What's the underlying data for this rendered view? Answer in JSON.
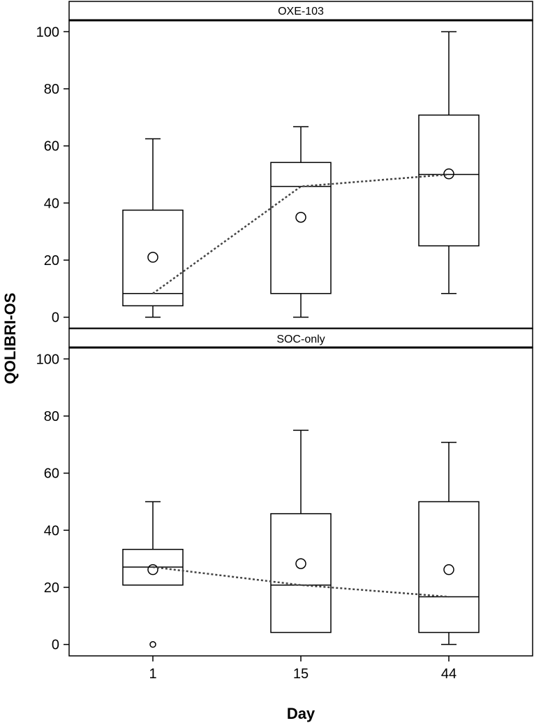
{
  "chart_data": {
    "type": "box",
    "xlabel": "Day",
    "ylabel": "QOLIBRI-OS",
    "categories": [
      "1",
      "15",
      "44"
    ],
    "ylim": [
      -4,
      104
    ],
    "yticks": [
      0,
      20,
      40,
      60,
      80,
      100
    ],
    "grid": false,
    "legend": "none",
    "panels": [
      {
        "label": "OXE-103",
        "boxes": [
          {
            "day": "1",
            "min": 0,
            "q1": 4,
            "median": 8.3,
            "q3": 37.5,
            "max": 62.5,
            "mean": 21,
            "outliers": []
          },
          {
            "day": "15",
            "min": 0,
            "q1": 8.3,
            "median": 45.8,
            "q3": 54.2,
            "max": 66.7,
            "mean": 35,
            "outliers": []
          },
          {
            "day": "44",
            "min": 8.3,
            "q1": 25,
            "median": 50,
            "q3": 70.8,
            "max": 100,
            "mean": 50.2,
            "outliers": []
          }
        ],
        "median_line": [
          8.3,
          45.8,
          50
        ]
      },
      {
        "label": "SOC-only",
        "boxes": [
          {
            "day": "1",
            "min": 20.8,
            "q1": 20.8,
            "median": 27.1,
            "q3": 33.3,
            "max": 50,
            "mean": 26.2,
            "outliers": [
              0
            ]
          },
          {
            "day": "15",
            "min": 4.2,
            "q1": 4.2,
            "median": 20.8,
            "q3": 45.8,
            "max": 75,
            "mean": 28.3,
            "outliers": []
          },
          {
            "day": "44",
            "min": 0,
            "q1": 4.2,
            "median": 16.7,
            "q3": 50,
            "max": 70.8,
            "mean": 26.2,
            "outliers": []
          }
        ],
        "median_line": [
          27.1,
          20.8,
          16.7
        ]
      }
    ]
  }
}
